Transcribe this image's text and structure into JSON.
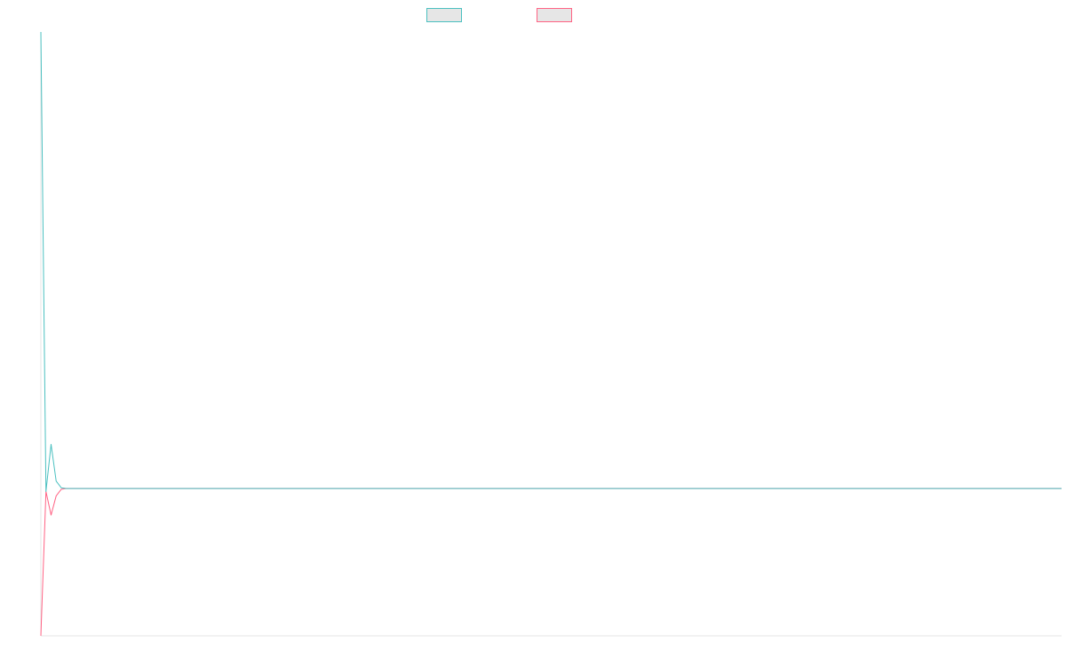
{
  "chart_data": {
    "type": "line",
    "title": "",
    "xlabel": "",
    "ylabel": "",
    "grid": false,
    "legend_placement": "top",
    "x": [
      0,
      1,
      2,
      3,
      4,
      5,
      6,
      7,
      8,
      9,
      10,
      11,
      12,
      13,
      14,
      15,
      16,
      17,
      18,
      19,
      20,
      21,
      22,
      23,
      24,
      25,
      26,
      27,
      28,
      29,
      30,
      31,
      32,
      33,
      34,
      35,
      36,
      37,
      38,
      39,
      40,
      41,
      42,
      43,
      44,
      45,
      46,
      47,
      48,
      49,
      50,
      51,
      52,
      53,
      54,
      55,
      56,
      57,
      58,
      59,
      60,
      61,
      62,
      63,
      64,
      65,
      66,
      67,
      68,
      69,
      70,
      71,
      72,
      73,
      74,
      75,
      76,
      77,
      78,
      79,
      80,
      81,
      82,
      83,
      84,
      85,
      86,
      87,
      88,
      89,
      90,
      91,
      92,
      93,
      94,
      95,
      96,
      97,
      98,
      99,
      100,
      101,
      102,
      103,
      104,
      105,
      106,
      107,
      108,
      109,
      110,
      111,
      112,
      113,
      114,
      115,
      116,
      117,
      118,
      119,
      120,
      121,
      122,
      123,
      124,
      125,
      126,
      127,
      128,
      129,
      130,
      131,
      132,
      133,
      134,
      135,
      136,
      137,
      138,
      139,
      140,
      141,
      142,
      143,
      144,
      145,
      146,
      147,
      148,
      149,
      150,
      151,
      152,
      153,
      154,
      155,
      156,
      157,
      158,
      159,
      160,
      161,
      162,
      163,
      164,
      165,
      166,
      167,
      168,
      169,
      170,
      171,
      172,
      173,
      174,
      175,
      176,
      177,
      178,
      179,
      180,
      181,
      182,
      183,
      184,
      185,
      186,
      187,
      188,
      189,
      190,
      191,
      192,
      193,
      194,
      195,
      196,
      197,
      198,
      199,
      200
    ],
    "xlim": [
      0,
      200
    ],
    "ylim": [
      -100,
      310
    ],
    "series": [
      {
        "name": "",
        "color": "#4bc0c0",
        "values": [
          310,
          -2,
          30,
          5,
          0.5,
          0,
          0,
          0,
          0,
          0,
          0,
          0,
          0,
          0,
          0,
          0,
          0,
          0,
          0,
          0,
          0,
          0,
          0,
          0,
          0,
          0,
          0,
          0,
          0,
          0,
          0,
          0,
          0,
          0,
          0,
          0,
          0,
          0,
          0,
          0,
          0,
          0,
          0,
          0,
          0,
          0,
          0,
          0,
          0,
          0,
          0,
          0,
          0,
          0,
          0,
          0,
          0,
          0,
          0,
          0,
          0,
          0,
          0,
          0,
          0,
          0,
          0,
          0,
          0,
          0,
          0,
          0,
          0,
          0,
          0,
          0,
          0,
          0,
          0,
          0,
          0,
          0,
          0,
          0,
          0,
          0,
          0,
          0,
          0,
          0,
          0,
          0,
          0,
          0,
          0,
          0,
          0,
          0,
          0,
          0,
          0,
          0,
          0,
          0,
          0,
          0,
          0,
          0,
          0,
          0,
          0,
          0,
          0,
          0,
          0,
          0,
          0,
          0,
          0,
          0,
          0,
          0,
          0,
          0,
          0,
          0,
          0,
          0,
          0,
          0,
          0,
          0,
          0,
          0,
          0,
          0,
          0,
          0,
          0,
          0,
          0,
          0,
          0,
          0,
          0,
          0,
          0,
          0,
          0,
          0,
          0,
          0,
          0,
          0,
          0,
          0,
          0,
          0,
          0,
          0,
          0,
          0,
          0,
          0,
          0,
          0,
          0,
          0,
          0,
          0,
          0,
          0,
          0,
          0,
          0,
          0,
          0,
          0,
          0,
          0,
          0,
          0,
          0,
          0,
          0,
          0,
          0,
          0,
          0,
          0,
          0,
          0,
          0,
          0,
          0,
          0,
          0,
          0,
          0,
          0,
          0
        ]
      },
      {
        "name": "",
        "color": "#ff6384",
        "values": [
          -100,
          -2,
          -18,
          -5,
          -0.5,
          0,
          0,
          0,
          0,
          0,
          0,
          0,
          0,
          0,
          0,
          0,
          0,
          0,
          0,
          0,
          0,
          0,
          0,
          0,
          0,
          0,
          0,
          0,
          0,
          0,
          0,
          0,
          0,
          0,
          0,
          0,
          0,
          0,
          0,
          0,
          0,
          0,
          0,
          0,
          0,
          0,
          0,
          0,
          0,
          0,
          0,
          0,
          0,
          0,
          0,
          0,
          0,
          0,
          0,
          0,
          0,
          0,
          0,
          0,
          0,
          0,
          0,
          0,
          0,
          0,
          0,
          0,
          0,
          0,
          0,
          0,
          0,
          0,
          0,
          0,
          0,
          0,
          0,
          0,
          0,
          0,
          0,
          0,
          0,
          0,
          0,
          0,
          0,
          0,
          0,
          0,
          0,
          0,
          0,
          0,
          0,
          0,
          0,
          0,
          0,
          0,
          0,
          0,
          0,
          0,
          0,
          0,
          0,
          0,
          0,
          0,
          0,
          0,
          0,
          0,
          0,
          0,
          0,
          0,
          0,
          0,
          0,
          0,
          0,
          0,
          0,
          0,
          0,
          0,
          0,
          0,
          0,
          0,
          0,
          0,
          0,
          0,
          0,
          0,
          0,
          0,
          0,
          0,
          0,
          0,
          0,
          0,
          0,
          0,
          0,
          0,
          0,
          0,
          0,
          0,
          0,
          0,
          0,
          0,
          0,
          0,
          0,
          0,
          0,
          0,
          0,
          0,
          0,
          0,
          0,
          0,
          0,
          0,
          0,
          0,
          0,
          0,
          0,
          0,
          0,
          0,
          0,
          0,
          0,
          0,
          0,
          0,
          0,
          0,
          0,
          0,
          0,
          0,
          0,
          0,
          0
        ]
      }
    ]
  }
}
